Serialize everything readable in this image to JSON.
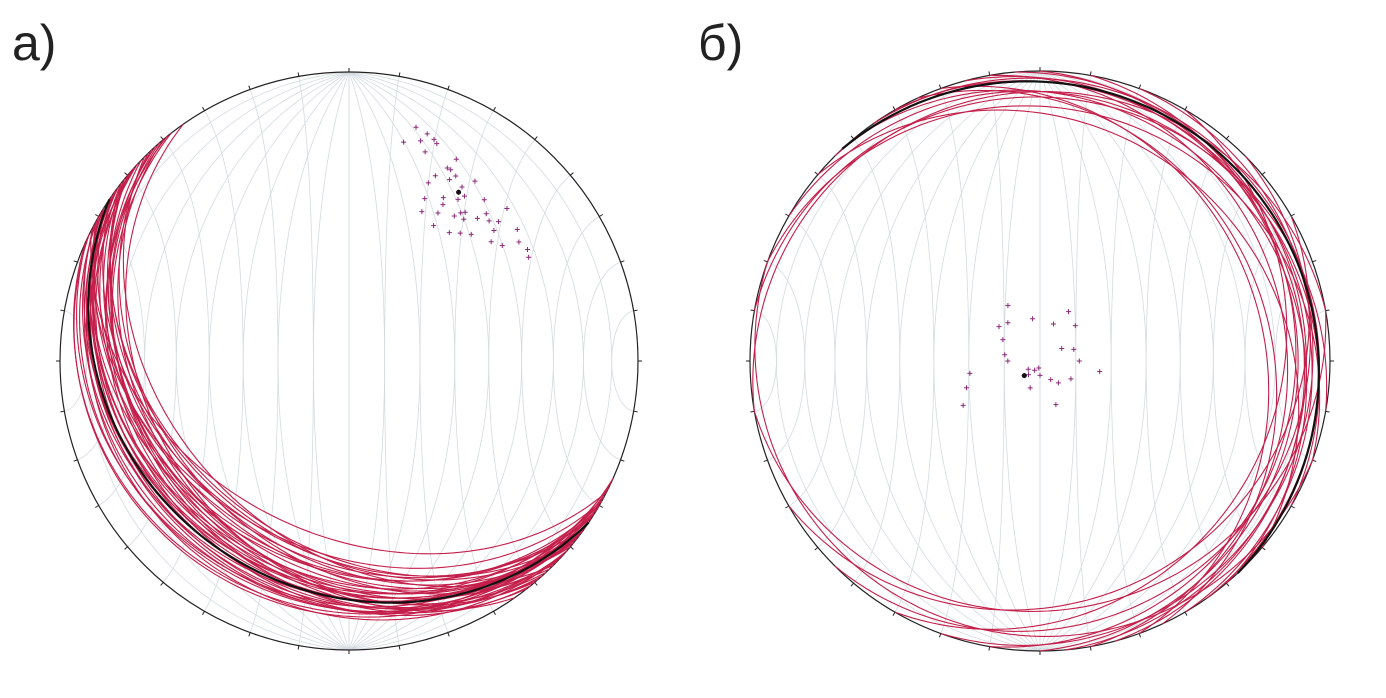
{
  "chart_data": [
    {
      "type": "stereonet",
      "title": "а)",
      "plane_color": "#c41e4a",
      "point_color": "#8a2a78",
      "mean_color": "#111111",
      "plane_dip_directions": [
        205,
        208,
        210,
        212,
        214,
        215,
        216,
        218,
        220,
        222,
        225,
        228,
        230,
        206,
        209,
        211,
        213,
        217,
        219,
        221,
        224,
        226,
        232,
        235,
        207,
        210,
        214,
        218,
        222,
        227,
        204,
        212,
        216,
        220,
        223,
        229,
        231,
        209,
        215,
        219
      ],
      "plane_dips": [
        18,
        24,
        30,
        22,
        26,
        35,
        20,
        28,
        32,
        16,
        38,
        25,
        30,
        14,
        21,
        27,
        33,
        23,
        36,
        19,
        29,
        34,
        26,
        31,
        40,
        17,
        24,
        37,
        22,
        28,
        15,
        31,
        25,
        34,
        20,
        27,
        23,
        35,
        18,
        30
      ],
      "point_trends": [
        16,
        22,
        28,
        35,
        30,
        25,
        40,
        45,
        38,
        33,
        20,
        27,
        42,
        50,
        55,
        36,
        31,
        24,
        18,
        29,
        34,
        39,
        47,
        52,
        58,
        26,
        32,
        37,
        44,
        48,
        21,
        14,
        30,
        41,
        35,
        28,
        46,
        53,
        38,
        25,
        33,
        43,
        60,
        19,
        31
      ],
      "point_plunges": [
        17,
        20,
        22,
        25,
        27,
        30,
        28,
        32,
        35,
        31,
        24,
        26,
        34,
        36,
        29,
        38,
        40,
        33,
        21,
        29,
        33,
        37,
        30,
        27,
        28,
        42,
        44,
        36,
        39,
        33,
        19,
        23,
        35,
        41,
        31,
        26,
        25,
        34,
        43,
        38,
        29,
        31,
        29,
        18,
        37
      ],
      "mean_plane": {
        "dip_direction": 214,
        "dip": 22
      },
      "mean_point": {
        "trend": 33,
        "plunge": 31
      }
    },
    {
      "type": "stereonet",
      "title": "б)",
      "plane_color": "#c41e4a",
      "point_color": "#8a2a78",
      "mean_color": "#111111",
      "plane_dip_directions": [
        45,
        60,
        75,
        90,
        30,
        20,
        110,
        135,
        150,
        80,
        55,
        40,
        100,
        65,
        10,
        350,
        170,
        120,
        70,
        85,
        50,
        200
      ],
      "plane_dips": [
        6,
        8,
        10,
        12,
        9,
        14,
        7,
        11,
        18,
        16,
        5,
        20,
        13,
        22,
        10,
        8,
        15,
        19,
        24,
        9,
        12,
        6
      ],
      "point_trends": [
        227,
        300,
        310,
        280,
        240,
        200,
        180,
        150,
        120,
        90,
        71,
        60,
        45,
        30,
        350,
        330,
        260,
        220,
        190,
        160,
        100,
        250,
        270,
        210,
        140,
        20,
        320,
        235
      ],
      "point_plunges": [
        84,
        78,
        75,
        80,
        65,
        82,
        86,
        84,
        80,
        79,
        80,
        83,
        76,
        74,
        78,
        72,
        70,
        85,
        88,
        77,
        73,
        68,
        81,
        87,
        82,
        79,
        76,
        86
      ],
      "mean_plane": {
        "dip_direction": 47,
        "dip": 6
      },
      "mean_point": {
        "trend": 227,
        "plunge": 84
      }
    }
  ]
}
